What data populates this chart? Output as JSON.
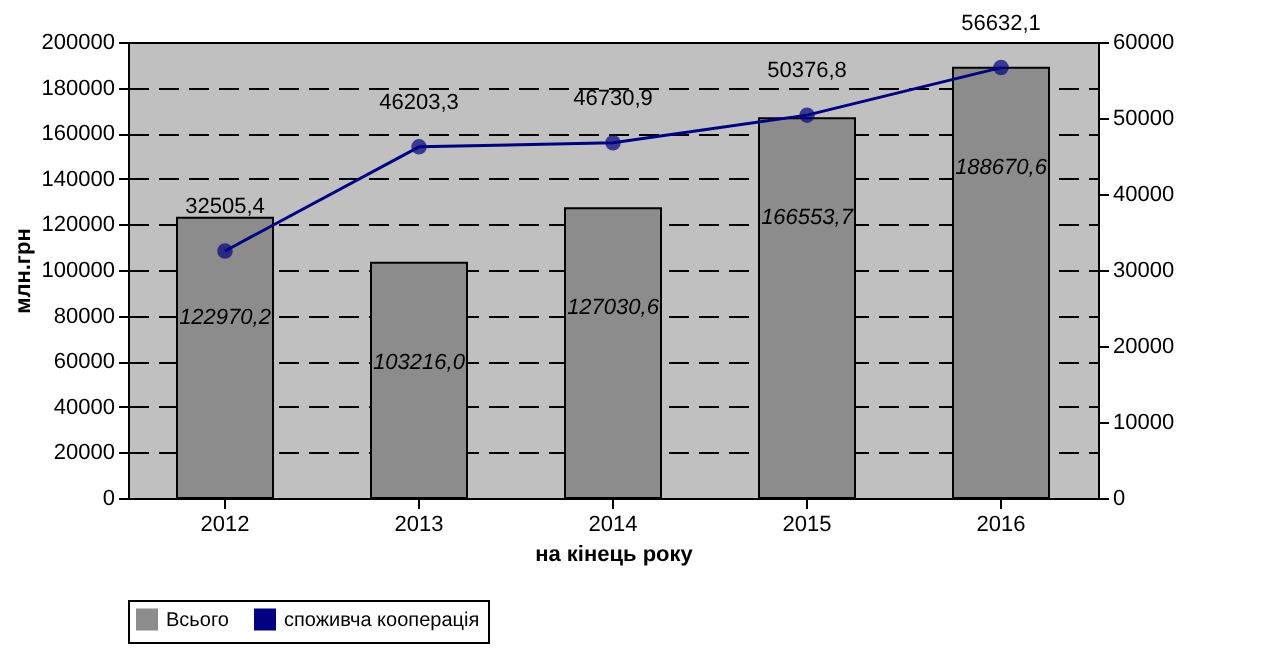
{
  "chart_data": {
    "type": "bar",
    "categories": [
      "2012",
      "2013",
      "2014",
      "2015",
      "2016"
    ],
    "xlabel": "на кінець року",
    "ylabel": "млн.грн",
    "series": [
      {
        "name": "Всього",
        "color": "#8c8c8c",
        "values": [
          122970.2,
          103216.0,
          127030.6,
          166553.7,
          188670.6
        ],
        "value_labels": [
          "122970,2",
          "103216,0",
          "127030,6",
          "166553,7",
          "188670,6"
        ]
      },
      {
        "name": "споживча кооперація",
        "type": "line",
        "axis": "y2",
        "color": "#000080",
        "values": [
          32505.4,
          46203.3,
          46730.9,
          50376.8,
          56632.1
        ],
        "value_labels": [
          "32505,4",
          "46203,3",
          "46730,9",
          "50376,8",
          "56632,1"
        ]
      }
    ],
    "ylim": [
      0,
      200000
    ],
    "yticks": [
      0,
      20000,
      40000,
      60000,
      80000,
      100000,
      120000,
      140000,
      160000,
      180000,
      200000
    ],
    "y2lim": [
      0,
      60000
    ],
    "y2ticks": [
      0,
      10000,
      20000,
      30000,
      40000,
      50000,
      60000
    ],
    "grid": "y",
    "legend": "bottom",
    "marker": "circle",
    "line_style": "solid"
  }
}
